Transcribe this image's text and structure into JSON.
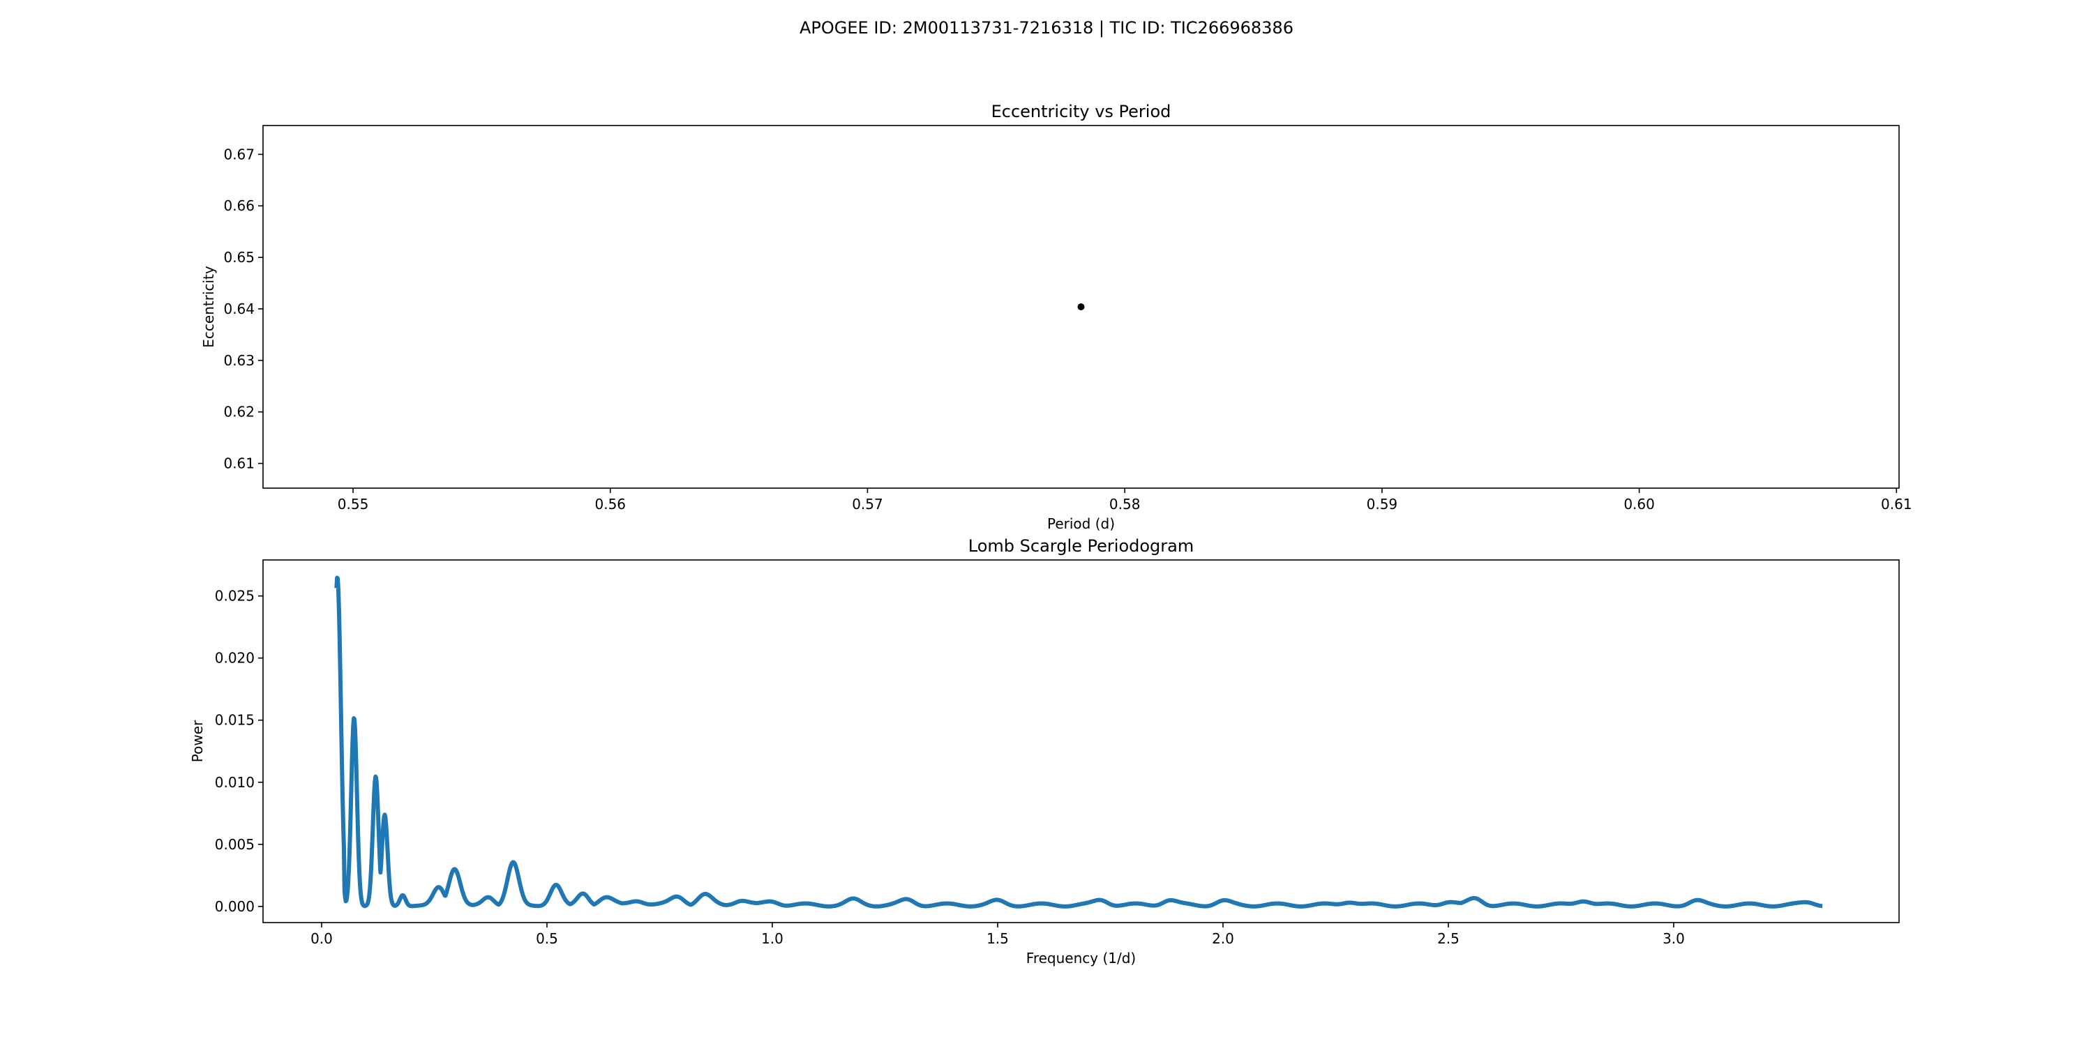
{
  "figure": {
    "suptitle": "APOGEE ID: 2M00113731-7216318 | TIC ID: TIC266968386"
  },
  "chart_data": [
    {
      "type": "scatter",
      "title": "Eccentricity vs Period",
      "xlabel": "Period (d)",
      "ylabel": "Eccentricity",
      "xlim": [
        0.5465,
        0.6101
      ],
      "ylim": [
        0.6052,
        0.6756
      ],
      "xticks": [
        "0.55",
        "0.56",
        "0.57",
        "0.58",
        "0.59",
        "0.60",
        "0.61"
      ],
      "yticks": [
        "0.61",
        "0.62",
        "0.63",
        "0.64",
        "0.65",
        "0.66",
        "0.67"
      ],
      "grid": false,
      "marker_color": "#000000",
      "points": [
        {
          "x": 0.5783,
          "y": 0.6404
        }
      ]
    },
    {
      "type": "line",
      "title": "Lomb Scargle Periodogram",
      "xlabel": "Frequency (1/d)",
      "ylabel": "Power",
      "xlim": [
        -0.13,
        3.5
      ],
      "ylim": [
        -0.0013,
        0.0279
      ],
      "xticks": [
        "0.0",
        "0.5",
        "1.0",
        "1.5",
        "2.0",
        "2.5",
        "3.0"
      ],
      "yticks": [
        "0.000",
        "0.005",
        "0.010",
        "0.015",
        "0.020",
        "0.025"
      ],
      "grid": false,
      "line_color": "#1f77b4",
      "x_range": [
        0.033,
        3.33
      ],
      "peaks": [
        {
          "f": 0.035,
          "p": 0.0265
        },
        {
          "f": 0.072,
          "p": 0.0152
        },
        {
          "f": 0.12,
          "p": 0.0104
        },
        {
          "f": 0.14,
          "p": 0.0073
        },
        {
          "f": 0.18,
          "p": 0.0009
        },
        {
          "f": 0.26,
          "p": 0.0015
        },
        {
          "f": 0.295,
          "p": 0.003
        },
        {
          "f": 0.37,
          "p": 0.0007
        },
        {
          "f": 0.425,
          "p": 0.0035
        },
        {
          "f": 0.52,
          "p": 0.0017
        },
        {
          "f": 0.58,
          "p": 0.001
        },
        {
          "f": 0.63,
          "p": 0.0006
        },
        {
          "f": 0.7,
          "p": 0.0004
        },
        {
          "f": 0.79,
          "p": 0.0007
        },
        {
          "f": 0.85,
          "p": 0.0008
        },
        {
          "f": 0.93,
          "p": 0.0004
        },
        {
          "f": 1.0,
          "p": 0.0003
        },
        {
          "f": 1.18,
          "p": 0.0004
        },
        {
          "f": 1.3,
          "p": 0.0004
        },
        {
          "f": 1.5,
          "p": 0.0003
        },
        {
          "f": 1.73,
          "p": 0.0004
        },
        {
          "f": 1.88,
          "p": 0.0004
        },
        {
          "f": 2.0,
          "p": 0.0003
        },
        {
          "f": 2.28,
          "p": 0.0003
        },
        {
          "f": 2.5,
          "p": 0.0003
        },
        {
          "f": 2.56,
          "p": 0.0005
        },
        {
          "f": 2.8,
          "p": 0.0004
        },
        {
          "f": 3.05,
          "p": 0.0003
        },
        {
          "f": 3.3,
          "p": 0.0002
        }
      ]
    }
  ]
}
